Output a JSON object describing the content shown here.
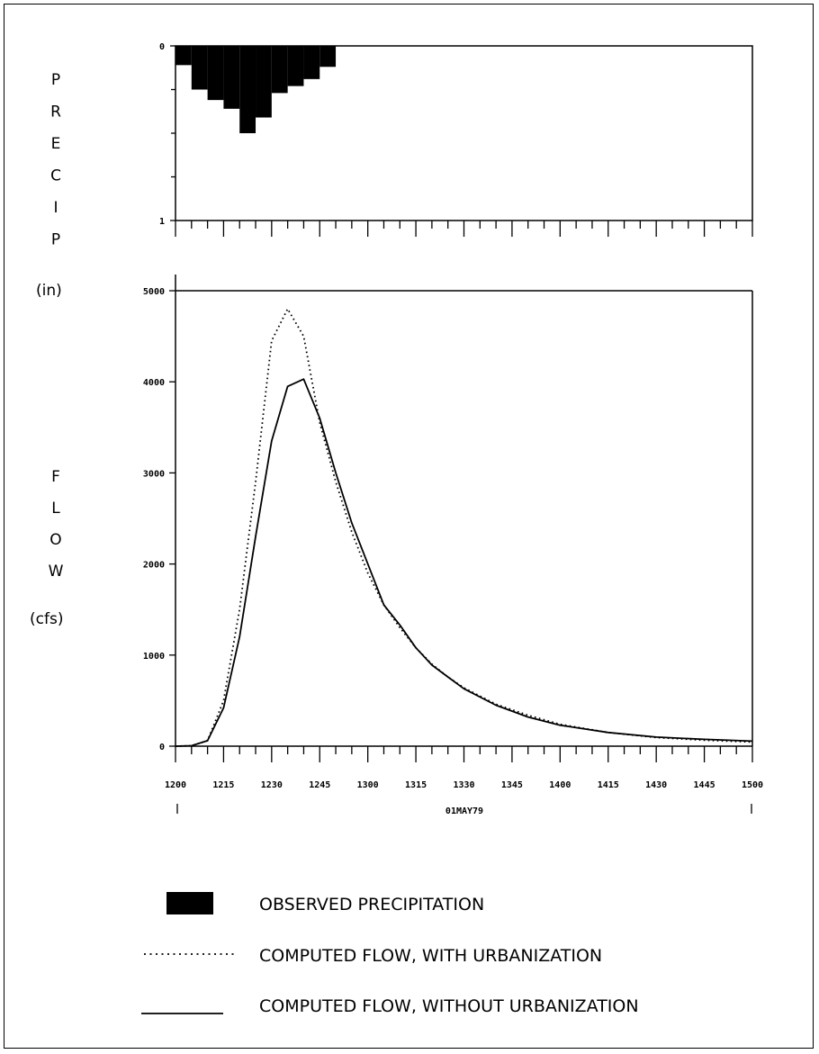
{
  "chart_data": [
    {
      "type": "bar",
      "name": "precip",
      "ylabel_letters": [
        "P",
        "R",
        "E",
        "C",
        "I",
        "P"
      ],
      "yunit": "(in)",
      "ylim": [
        0,
        1
      ],
      "yticks": [
        {
          "value": 0,
          "label": "0"
        },
        {
          "value": 1,
          "label": "1"
        }
      ],
      "x_minutes_start": 0,
      "interval_minutes": 5,
      "values": [
        0.11,
        0.25,
        0.31,
        0.36,
        0.5,
        0.41,
        0.27,
        0.23,
        0.19,
        0.12
      ],
      "color": "#000000"
    },
    {
      "type": "line",
      "name": "flow",
      "ylabel_letters": [
        "F",
        "L",
        "O",
        "W"
      ],
      "yunit": "(cfs)",
      "ylim": [
        0,
        5000
      ],
      "yticks": [
        {
          "value": 0,
          "label": "0"
        },
        {
          "value": 1000,
          "label": "1000"
        },
        {
          "value": 2000,
          "label": "2000"
        },
        {
          "value": 3000,
          "label": "3000"
        },
        {
          "value": 4000,
          "label": "4000"
        },
        {
          "value": 5000,
          "label": "5000"
        }
      ],
      "xticklabels": [
        "1200",
        "1215",
        "1230",
        "1245",
        "1300",
        "1315",
        "1330",
        "1345",
        "1400",
        "1415",
        "1430",
        "1445",
        "1500"
      ],
      "xlabel": "01MAY79",
      "series": [
        {
          "name": "COMPUTED FLOW, WITH URBANIZATION",
          "style": "dotted",
          "x": [
            "1200",
            "1205",
            "1210",
            "1215",
            "1220",
            "1225",
            "1230",
            "1235",
            "1240",
            "1245",
            "1250",
            "1255",
            "1300",
            "1305",
            "1310",
            "1315",
            "1320",
            "1325",
            "1330",
            "1340",
            "1350",
            "1400",
            "1415",
            "1430",
            "1445",
            "1500"
          ],
          "values": [
            0,
            5,
            60,
            500,
            1500,
            2900,
            4450,
            4800,
            4500,
            3550,
            2900,
            2350,
            1900,
            1550,
            1300,
            1080,
            900,
            760,
            640,
            460,
            340,
            240,
            150,
            95,
            65,
            45
          ]
        },
        {
          "name": "COMPUTED FLOW, WITHOUT URBANIZATION",
          "style": "solid",
          "x": [
            "1200",
            "1205",
            "1210",
            "1215",
            "1220",
            "1225",
            "1230",
            "1235",
            "1240",
            "1245",
            "1250",
            "1255",
            "1300",
            "1305",
            "1310",
            "1315",
            "1320",
            "1325",
            "1330",
            "1340",
            "1350",
            "1400",
            "1415",
            "1430",
            "1445",
            "1500"
          ],
          "values": [
            0,
            5,
            60,
            420,
            1200,
            2300,
            3350,
            3950,
            4030,
            3600,
            3000,
            2450,
            2000,
            1550,
            1330,
            1080,
            890,
            760,
            630,
            450,
            320,
            230,
            150,
            100,
            75,
            55
          ]
        }
      ]
    }
  ],
  "legend": [
    {
      "symbol": "box",
      "label": "OBSERVED PRECIPITATION"
    },
    {
      "symbol": "dotted",
      "label": "COMPUTED FLOW, WITH URBANIZATION"
    },
    {
      "symbol": "solid",
      "label": "COMPUTED FLOW, WITHOUT URBANIZATION"
    }
  ]
}
